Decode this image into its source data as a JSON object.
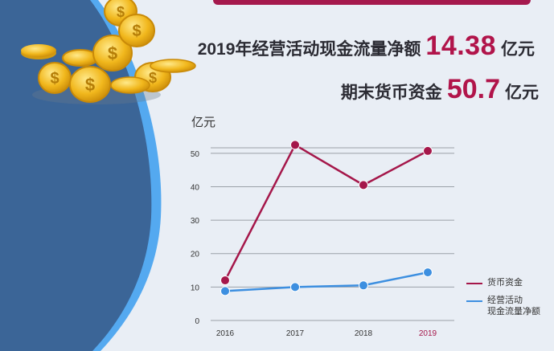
{
  "headline": {
    "line1_prefix": "2019年经营活动现金流量净额",
    "line1_value": "14.38",
    "line1_unit": "亿元",
    "line2_prefix": "期末货币资金",
    "line2_value": "50.7",
    "line2_unit": "亿元"
  },
  "colors": {
    "accent": "#b1144a",
    "cash_line": "#a5174a",
    "flow_line": "#3d8fe0",
    "left_panel": "#3f6a9c"
  },
  "icons": [
    "gold-coin-stack-icon"
  ],
  "chart_data": {
    "type": "line",
    "ylabel": "亿元",
    "categories": [
      "2016",
      "2017",
      "2018",
      "2019"
    ],
    "highlight_category": "2019",
    "yticks": [
      0,
      10,
      20,
      30,
      40,
      50
    ],
    "ylim": [
      0,
      55
    ],
    "grid": true,
    "legend_position": "right",
    "series": [
      {
        "name": "货币资金",
        "values": [
          12,
          52.5,
          40.5,
          50.7
        ],
        "color": "#a5174a"
      },
      {
        "name": "经营活动\n现金流量净额",
        "values": [
          8.8,
          10,
          10.5,
          14.38
        ],
        "color": "#3d8fe0"
      }
    ]
  }
}
